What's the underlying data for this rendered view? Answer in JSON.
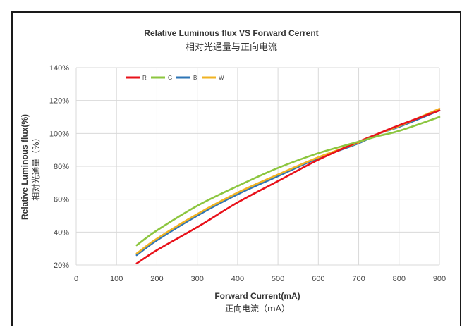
{
  "chart_data": {
    "type": "line",
    "title": "Relative Luminous flux VS Forward Cerrent",
    "subtitle": "相对光通量与正向电流",
    "xlabel": "Forward Current(mA)",
    "xlabel_cn": "正向电流（mA）",
    "ylabel": "Relative Luminous flux(%)",
    "ylabel_cn": "相对光通量（%）",
    "xlim": [
      0,
      900
    ],
    "ylim": [
      20,
      140
    ],
    "xticks": [
      0,
      100,
      200,
      300,
      400,
      500,
      600,
      700,
      800,
      900
    ],
    "yticks": [
      20,
      40,
      60,
      80,
      100,
      120,
      140
    ],
    "grid": true,
    "legend_position": "top-left",
    "series": [
      {
        "name": "R",
        "color": "#e8111a",
        "x": [
          150,
          200,
          300,
          400,
          500,
          600,
          700,
          750,
          800,
          900
        ],
        "y": [
          21,
          29,
          43,
          58,
          71,
          84,
          95,
          100,
          105,
          114
        ]
      },
      {
        "name": "G",
        "color": "#8cc63f",
        "x": [
          150,
          200,
          300,
          400,
          500,
          600,
          700,
          750,
          800,
          900
        ],
        "y": [
          32,
          41,
          56,
          68,
          79,
          88,
          95,
          98.5,
          101.5,
          110
        ]
      },
      {
        "name": "B",
        "color": "#2e75b6",
        "x": [
          150,
          200,
          300,
          400,
          500,
          600,
          700,
          750,
          800,
          900
        ],
        "y": [
          26,
          35,
          50,
          63,
          74,
          85,
          94,
          100,
          104,
          114
        ]
      },
      {
        "name": "W",
        "color": "#f0b323",
        "x": [
          150,
          200,
          300,
          400,
          500,
          600,
          700,
          750,
          800,
          900
        ],
        "y": [
          27,
          36,
          51,
          64,
          75,
          85.5,
          94.5,
          100,
          104.5,
          115
        ]
      }
    ]
  }
}
